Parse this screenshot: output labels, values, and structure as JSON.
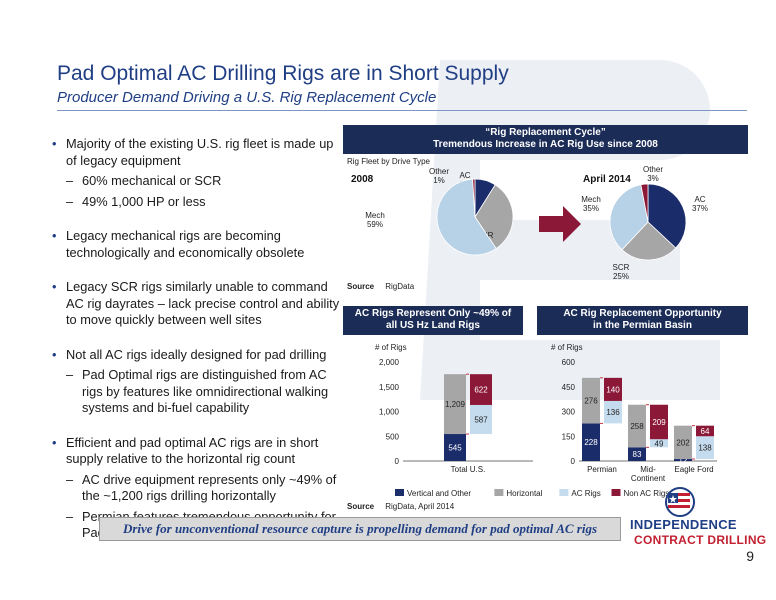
{
  "slide": {
    "title": "Pad Optimal AC Drilling Rigs are in Short Supply",
    "subtitle": "Producer Demand Driving a U.S. Rig Replacement Cycle",
    "page_number": "9",
    "callout": "Drive for unconventional resource capture is propelling demand for pad optimal AC rigs"
  },
  "bullets": [
    {
      "level": 1,
      "text": "Majority of the existing U.S. rig fleet is made up of legacy equipment"
    },
    {
      "level": 2,
      "text": "60% mechanical or SCR"
    },
    {
      "level": 2,
      "text": "49% 1,000 HP or less"
    },
    {
      "level": 1,
      "text": "Legacy mechanical rigs are becoming technologically and economically obsolete"
    },
    {
      "level": 1,
      "text": "Legacy SCR rigs similarly unable to command AC rig dayrates – lack precise control and ability to move quickly between well sites"
    },
    {
      "level": 1,
      "text": "Not all AC rigs ideally designed for pad drilling"
    },
    {
      "level": 2,
      "text": "Pad Optimal rigs are distinguished from AC rigs by features like omnidirectional walking systems and bi-fuel capability"
    },
    {
      "level": 1,
      "text": "Efficient and pad optimal AC rigs are in short supply relative to the horizontal rig count"
    },
    {
      "level": 2,
      "text": "AC drive equipment represents only ~49% of the ~1,200 rigs drilling horizontally"
    },
    {
      "level": 2,
      "text": "Permian features tremendous opportunity for Pad Optimal AC rig providers"
    }
  ],
  "panels": {
    "top_header": [
      "“Rig Replacement Cycle”",
      "Tremendous Increase in AC Rig Use since 2008"
    ],
    "top_subtitle": "Rig Fleet by Drive Type",
    "top_source_label": "Source",
    "top_source": "RigData",
    "left_header": [
      "AC Rigs Represent Only ~49% of",
      "all US Hz Land Rigs"
    ],
    "right_header": [
      "AC Rig Replacement Opportunity",
      "in the Permian Basin"
    ],
    "bottom_source_label": "Source",
    "bottom_source": "RigData, April 2014"
  },
  "logo": {
    "line1": "INDEPENDENCE",
    "line2": "CONTRACT DRILLING"
  },
  "colors": {
    "navy": "#1f3e84",
    "header_bg": "#1b2c57",
    "ac": "#1b2c6b",
    "scr": "#a6a6a6",
    "mech": "#b7d1e6",
    "other": "#8c1838",
    "ac_light": "#c5dcef",
    "brand_red": "#c22031"
  },
  "chart_data": [
    {
      "type": "pie",
      "title": "2008",
      "slices": [
        {
          "name": "AC",
          "label": "AC\n9%",
          "value": 9
        },
        {
          "name": "SCR",
          "label": "SCR\n32%",
          "value": 32
        },
        {
          "name": "Mech",
          "label": "Mech\n59%",
          "value": 59
        },
        {
          "name": "Other",
          "label": "Other\n1%",
          "value": 1
        }
      ]
    },
    {
      "type": "pie",
      "title": "April 2014",
      "slices": [
        {
          "name": "AC",
          "label": "AC\n37%",
          "value": 37
        },
        {
          "name": "SCR",
          "label": "SCR\n25%",
          "value": 25
        },
        {
          "name": "Mech",
          "label": "Mech\n35%",
          "value": 35
        },
        {
          "name": "Other",
          "label": "Other\n3%",
          "value": 3
        }
      ]
    },
    {
      "type": "bar",
      "stacked": true,
      "ylabel": "# of Rigs",
      "ylim": [
        0,
        2000
      ],
      "yticks": [
        "0",
        "500",
        "1,000",
        "1,500",
        "2,000"
      ],
      "categories": [
        "Total U.S."
      ],
      "columns": [
        {
          "category": "Total U.S.",
          "column": "left",
          "segments": [
            {
              "series": "Vertical and Other",
              "value": 545,
              "label": "545"
            },
            {
              "series": "Horizontal",
              "value": 1209,
              "label": "1,209"
            }
          ]
        },
        {
          "category": "Total U.S.",
          "column": "right",
          "floating": true,
          "segments": [
            {
              "series": "AC Rigs",
              "value": 587,
              "label": "587"
            },
            {
              "series": "Non AC Rigs",
              "value": 622,
              "label": "622"
            }
          ]
        }
      ]
    },
    {
      "type": "bar",
      "stacked": true,
      "ylabel": "# of Rigs",
      "ylim": [
        0,
        600
      ],
      "yticks": [
        "0",
        "150",
        "300",
        "450",
        "600"
      ],
      "categories": [
        "Permian",
        "Mid-\nContinent",
        "Eagle Ford"
      ],
      "columns": [
        {
          "category": "Permian",
          "column": "left",
          "segments": [
            {
              "series": "Vertical and Other",
              "value": 228,
              "label": "228"
            },
            {
              "series": "Horizontal",
              "value": 276,
              "label": "276"
            }
          ]
        },
        {
          "category": "Permian",
          "column": "right",
          "floating": true,
          "segments": [
            {
              "series": "AC Rigs",
              "value": 136,
              "label": "136"
            },
            {
              "series": "Non AC Rigs",
              "value": 140,
              "label": "140"
            }
          ]
        },
        {
          "category": "Mid-\nContinent",
          "column": "left",
          "segments": [
            {
              "series": "Vertical and Other",
              "value": 83,
              "label": "83"
            },
            {
              "series": "Horizontal",
              "value": 258,
              "label": "258"
            }
          ]
        },
        {
          "category": "Mid-\nContinent",
          "column": "right",
          "floating": true,
          "segments": [
            {
              "series": "AC Rigs",
              "value": 49,
              "label": "49"
            },
            {
              "series": "Non AC Rigs",
              "value": 209,
              "label": "209"
            }
          ]
        },
        {
          "category": "Eagle Ford",
          "column": "left",
          "segments": [
            {
              "series": "Vertical and Other",
              "value": 12,
              "label": "12"
            },
            {
              "series": "Horizontal",
              "value": 202,
              "label": "202"
            }
          ]
        },
        {
          "category": "Eagle Ford",
          "column": "right",
          "floating": true,
          "segments": [
            {
              "series": "AC Rigs",
              "value": 138,
              "label": "138"
            },
            {
              "series": "Non AC Rigs",
              "value": 64,
              "label": "64"
            }
          ]
        }
      ]
    }
  ],
  "legend": [
    {
      "name": "Vertical and Other",
      "color": "#1b2c6b"
    },
    {
      "name": "Horizontal",
      "color": "#a6a6a6"
    },
    {
      "name": "AC Rigs",
      "color": "#c5dcef"
    },
    {
      "name": "Non AC Rigs",
      "color": "#8c1838"
    }
  ]
}
